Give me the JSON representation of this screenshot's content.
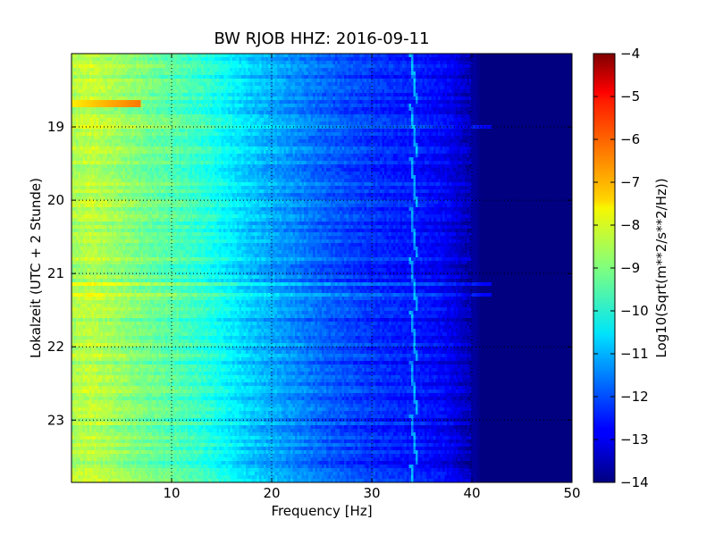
{
  "chart_data": {
    "type": "heatmap",
    "title": "BW RJOB HHZ: 2016-09-11",
    "xlabel": "Frequency [Hz]",
    "ylabel": "Lokalzeit (UTC + 2 Stunde)",
    "xlim": [
      0,
      50
    ],
    "ylim": [
      18.0,
      23.85
    ],
    "x_ticks": [
      10,
      20,
      30,
      40,
      50
    ],
    "x_tick_labels": [
      "10",
      "20",
      "30",
      "40",
      "50"
    ],
    "y_ticks": [
      19,
      20,
      21,
      22,
      23
    ],
    "y_tick_labels": [
      "19",
      "20",
      "21",
      "22",
      "23"
    ],
    "grid": true,
    "colormap": "jet",
    "colorbar": {
      "label": "Log10(Sqrt(m**2/s**2/Hz))",
      "range": [
        -14,
        -4
      ],
      "ticks": [
        -4,
        -5,
        -6,
        -7,
        -8,
        -9,
        -10,
        -11,
        -12,
        -13,
        -14
      ],
      "tick_labels": [
        "−4",
        "−5",
        "−6",
        "−7",
        "−8",
        "−9",
        "−10",
        "−11",
        "−12",
        "−13",
        "−14"
      ]
    },
    "profile": {
      "frequency_hz": [
        0,
        2,
        5,
        8,
        10,
        13,
        15,
        18,
        20,
        23,
        25,
        28,
        30,
        33,
        35,
        37,
        38,
        39,
        40,
        41,
        42,
        50
      ],
      "level": [
        -8.6,
        -8.4,
        -8.8,
        -9.2,
        -9.4,
        -9.8,
        -10.2,
        -10.8,
        -11.1,
        -11.5,
        -11.8,
        -12.1,
        -12.3,
        -12.5,
        -12.6,
        -12.8,
        -13.0,
        -13.3,
        -13.6,
        -14.0,
        -14.0,
        -14.0
      ]
    },
    "features": {
      "drift_line_hz": 34.5,
      "bright_spot": {
        "frequency_hz": 1.5,
        "time": 18.7,
        "level": -7.6
      },
      "broadband_bursts_time": [
        19.0,
        21.15,
        21.3
      ]
    }
  }
}
